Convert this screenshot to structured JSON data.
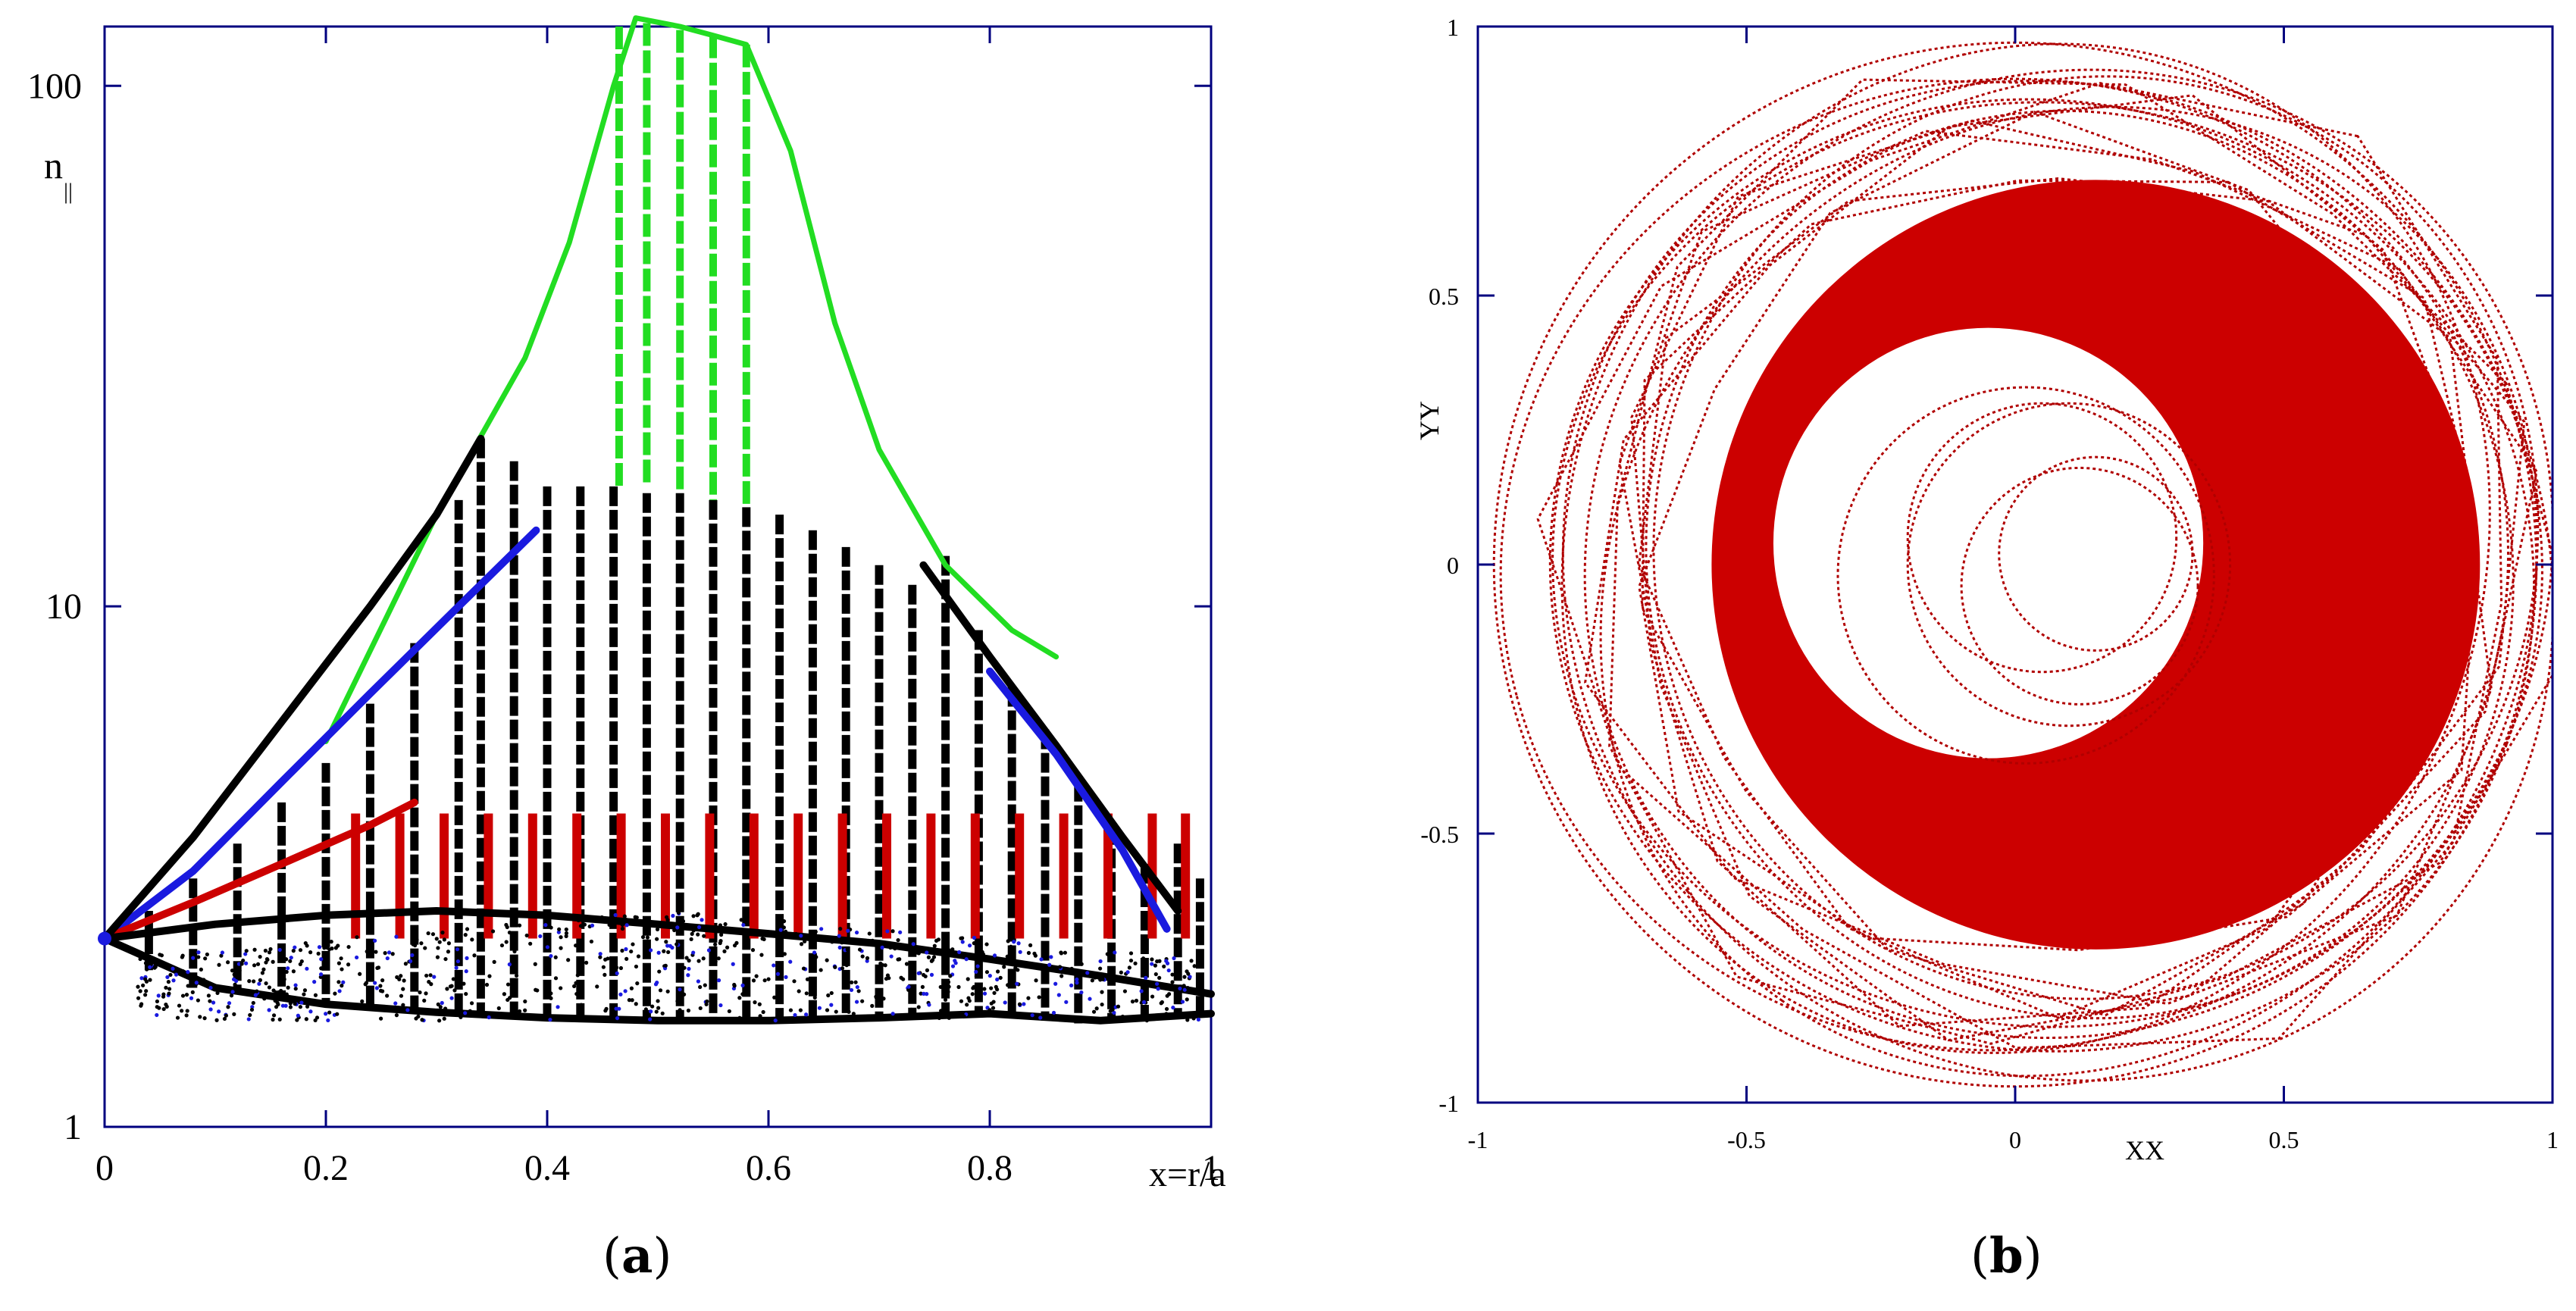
{
  "figure": {
    "panel_a_label": "a",
    "panel_b_label": "b",
    "frame_color": "#00007f",
    "colors": {
      "green": "#22dd22",
      "black": "#000000",
      "blue": "#1a1adf",
      "red": "#cc0000",
      "dark_red": "#b00000",
      "frame": "#00007f"
    }
  },
  "chart_data": [
    {
      "panel": "a",
      "type": "line",
      "title": "",
      "xlabel": "x=r/a",
      "ylabel": "n",
      "ylabel_subscript": "||",
      "xlim": [
        0,
        1
      ],
      "ylim": [
        1,
        130
      ],
      "yscale": "log",
      "x_ticks": [
        0,
        0.2,
        0.4,
        0.6,
        0.8,
        1
      ],
      "x_tick_labels": [
        "0",
        "0.2",
        "0.4",
        "0.6",
        "0.8",
        "1"
      ],
      "y_ticks": [
        1,
        10,
        100
      ],
      "y_tick_labels": [
        "1",
        "10",
        "100"
      ],
      "grid": false,
      "legend": "none",
      "start_point": {
        "x": 0,
        "y": 2.3
      },
      "envelopes": [
        {
          "color": "green",
          "x": [
            0.2,
            0.3,
            0.38,
            0.42,
            0.46,
            0.48,
            0.52,
            0.55,
            0.58,
            0.62,
            0.66,
            0.7,
            0.76,
            0.82,
            0.86
          ],
          "y": [
            5.5,
            15,
            30,
            50,
            100,
            135,
            130,
            125,
            120,
            75,
            35,
            20,
            12,
            9,
            8
          ]
        },
        {
          "color": "blue",
          "x": [
            0,
            0.08,
            0.16,
            0.24,
            0.32,
            0.39
          ],
          "y": [
            2.3,
            3.1,
            4.6,
            6.8,
            10,
            14
          ]
        },
        {
          "color": "red",
          "x": [
            0,
            0.08,
            0.16,
            0.24,
            0.28
          ],
          "y": [
            2.3,
            2.7,
            3.2,
            3.8,
            4.2
          ]
        },
        {
          "color": "black",
          "x": [
            0,
            0.08,
            0.16,
            0.24,
            0.3,
            0.34
          ],
          "y": [
            2.3,
            3.6,
            6,
            10,
            15,
            21
          ]
        },
        {
          "color": "black",
          "x": [
            0.74,
            0.8,
            0.86,
            0.92,
            0.97
          ],
          "y": [
            12,
            8,
            5.4,
            3.6,
            2.6
          ]
        },
        {
          "color": "blue",
          "x": [
            0.8,
            0.86,
            0.92,
            0.96
          ],
          "y": [
            7.5,
            5.2,
            3.4,
            2.4
          ]
        },
        {
          "color": "black",
          "x": [
            0,
            0.1,
            0.2,
            0.3,
            0.4,
            0.5,
            0.6,
            0.7,
            0.8,
            0.9,
            1.0
          ],
          "y": [
            2.3,
            1.85,
            1.72,
            1.66,
            1.62,
            1.6,
            1.6,
            1.62,
            1.65,
            1.6,
            1.65
          ]
        },
        {
          "color": "black",
          "x": [
            0,
            0.1,
            0.2,
            0.3,
            0.4,
            0.5,
            0.6,
            0.7,
            0.8,
            0.9,
            1.0
          ],
          "y": [
            2.3,
            2.45,
            2.55,
            2.6,
            2.55,
            2.45,
            2.35,
            2.25,
            2.1,
            1.95,
            1.8
          ]
        }
      ],
      "black_columns": {
        "x": [
          0.04,
          0.08,
          0.12,
          0.16,
          0.2,
          0.24,
          0.28,
          0.32,
          0.34,
          0.37,
          0.4,
          0.43,
          0.46,
          0.49,
          0.52,
          0.55,
          0.58,
          0.61,
          0.64,
          0.67,
          0.7,
          0.73,
          0.76,
          0.79,
          0.82,
          0.85,
          0.88,
          0.91,
          0.94,
          0.97,
          0.99
        ],
        "top": [
          2.6,
          3.0,
          3.5,
          4.2,
          5.0,
          6.5,
          8.5,
          16,
          21,
          19,
          17,
          17,
          17,
          16.5,
          16.5,
          16,
          15.5,
          15,
          14,
          13,
          12,
          11,
          12.5,
          9,
          7,
          5.8,
          4.6,
          3.8,
          3.2,
          3.5,
          3.0
        ],
        "bottom": [
          2.0,
          1.85,
          1.8,
          1.75,
          1.72,
          1.7,
          1.68,
          1.66,
          1.65,
          1.64,
          1.63,
          1.62,
          1.62,
          1.61,
          1.6,
          1.6,
          1.6,
          1.61,
          1.62,
          1.62,
          1.63,
          1.63,
          1.64,
          1.63,
          1.62,
          1.6,
          1.58,
          1.58,
          1.6,
          1.62,
          1.65
        ]
      },
      "green_columns": {
        "x": [
          0.465,
          0.49,
          0.52,
          0.55,
          0.58
        ],
        "top": [
          130,
          132,
          128,
          125,
          120
        ],
        "bottom": [
          17,
          17,
          16.5,
          16,
          15.5
        ]
      },
      "red_columns": {
        "x": [
          0.22,
          0.26,
          0.3,
          0.34,
          0.38,
          0.42,
          0.46,
          0.5,
          0.54,
          0.58,
          0.62,
          0.66,
          0.7,
          0.74,
          0.78,
          0.82,
          0.86,
          0.9,
          0.94,
          0.97
        ],
        "top": 4.0,
        "bottom": 2.3
      }
    },
    {
      "panel": "b",
      "type": "scatter",
      "title": "",
      "xlabel": "XX",
      "ylabel": "YY",
      "xlim": [
        -1,
        1
      ],
      "ylim": [
        -1,
        1
      ],
      "x_ticks": [
        -1,
        -0.5,
        0,
        0.5,
        1
      ],
      "x_tick_labels": [
        "-1",
        "-0.5",
        "0",
        "0.5",
        "1"
      ],
      "y_ticks": [
        -1,
        -0.5,
        0,
        0.5,
        1
      ],
      "y_tick_labels": [
        "-1",
        "-0.5",
        "0",
        "0.5",
        "1"
      ],
      "grid": false,
      "legend": "none",
      "filled_annulus": {
        "outer": {
          "cx": 0.15,
          "cy": 0.0,
          "r": 0.715
        },
        "inner": {
          "cx": -0.05,
          "cy": 0.04,
          "r": 0.4
        }
      },
      "trajectory": {
        "description_free": true,
        "orbits": [
          {
            "cx": 0.0,
            "cy": 0.0,
            "rx": 0.97,
            "ry": 0.97,
            "rot": 0
          },
          {
            "cx": 0.05,
            "cy": -0.02,
            "rx": 0.92,
            "ry": 0.88,
            "rot": 20
          },
          {
            "cx": 0.1,
            "cy": 0.02,
            "rx": 0.88,
            "ry": 0.92,
            "rot": 45
          },
          {
            "cx": 0.12,
            "cy": 0.0,
            "rx": 0.85,
            "ry": 0.8,
            "rot": 70
          },
          {
            "cx": 0.02,
            "cy": 0.03,
            "rx": 0.95,
            "ry": 0.85,
            "rot": 110
          },
          {
            "cx": 0.08,
            "cy": -0.03,
            "rx": 0.9,
            "ry": 0.95,
            "rot": 140
          },
          {
            "cx": -0.02,
            "cy": 0.0,
            "rx": 0.94,
            "ry": 0.9,
            "rot": 165
          },
          {
            "cx": 0.15,
            "cy": 0.05,
            "rx": 0.82,
            "ry": 0.86,
            "rot": 15
          },
          {
            "cx": 0.06,
            "cy": 0.0,
            "rx": 0.86,
            "ry": 0.92,
            "rot": 95
          },
          {
            "cx": 0.1,
            "cy": -0.05,
            "rx": 0.93,
            "ry": 0.84,
            "rot": 125
          }
        ],
        "inner_loops": [
          {
            "cx": 0.1,
            "cy": 0.0,
            "r": 0.3
          },
          {
            "cx": 0.05,
            "cy": 0.05,
            "r": 0.25
          },
          {
            "cx": 0.12,
            "cy": -0.04,
            "r": 0.22
          },
          {
            "cx": 0.02,
            "cy": -0.02,
            "r": 0.35
          },
          {
            "cx": 0.15,
            "cy": 0.02,
            "r": 0.18
          }
        ]
      }
    }
  ]
}
